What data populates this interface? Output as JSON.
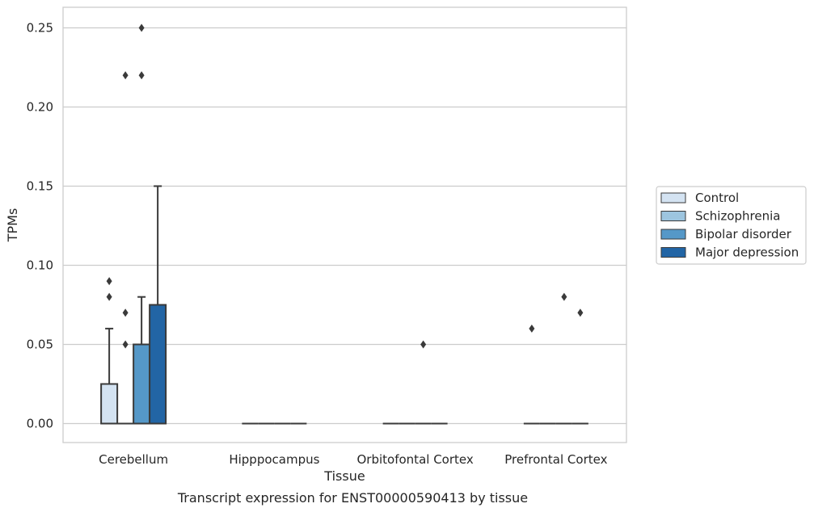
{
  "caption": "Transcript expression for ENST00000590413 by tissue",
  "colors": {
    "Control": "#d4e3f2",
    "Schizophrenia": "#9dc5df",
    "Bipolar disorder": "#5598c8",
    "Major depression": "#2265a5",
    "grid": "#cccccc",
    "frame": "#cccccc",
    "stroke": "#3a3a3a"
  },
  "chart_data": {
    "type": "box",
    "xlabel": "Tissue",
    "ylabel": "TPMs",
    "ylim": [
      -0.012,
      0.263
    ],
    "yticks": [
      0.0,
      0.05,
      0.1,
      0.15,
      0.2,
      0.25
    ],
    "ytick_labels": [
      "0.00",
      "0.05",
      "0.10",
      "0.15",
      "0.20",
      "0.25"
    ],
    "grid": "horizontal",
    "legend_position": "right",
    "categories": [
      "Cerebellum",
      "Hipppocampus",
      "Orbitofontal Cortex",
      "Prefrontal Cortex"
    ],
    "series": [
      {
        "name": "Control",
        "boxes": [
          {
            "q1": 0.0,
            "median": 0.0,
            "q3": 0.025,
            "whislo": 0.0,
            "whishi": 0.06,
            "fliers": [
              0.09,
              0.08
            ]
          },
          {
            "q1": 0.0,
            "median": 0.0,
            "q3": 0.0,
            "whislo": 0.0,
            "whishi": 0.0,
            "fliers": []
          },
          {
            "q1": 0.0,
            "median": 0.0,
            "q3": 0.0,
            "whislo": 0.0,
            "whishi": 0.0,
            "fliers": []
          },
          {
            "q1": 0.0,
            "median": 0.0,
            "q3": 0.0,
            "whislo": 0.0,
            "whishi": 0.0,
            "fliers": [
              0.06
            ]
          }
        ]
      },
      {
        "name": "Schizophrenia",
        "boxes": [
          {
            "q1": 0.0,
            "median": 0.0,
            "q3": 0.0,
            "whislo": 0.0,
            "whishi": 0.0,
            "fliers": [
              0.22,
              0.07,
              0.05
            ]
          },
          {
            "q1": 0.0,
            "median": 0.0,
            "q3": 0.0,
            "whislo": 0.0,
            "whishi": 0.0,
            "fliers": []
          },
          {
            "q1": 0.0,
            "median": 0.0,
            "q3": 0.0,
            "whislo": 0.0,
            "whishi": 0.0,
            "fliers": []
          },
          {
            "q1": 0.0,
            "median": 0.0,
            "q3": 0.0,
            "whislo": 0.0,
            "whishi": 0.0,
            "fliers": []
          }
        ]
      },
      {
        "name": "Bipolar disorder",
        "boxes": [
          {
            "q1": 0.0,
            "median": 0.0,
            "q3": 0.05,
            "whislo": 0.0,
            "whishi": 0.08,
            "fliers": [
              0.25,
              0.22
            ]
          },
          {
            "q1": 0.0,
            "median": 0.0,
            "q3": 0.0,
            "whislo": 0.0,
            "whishi": 0.0,
            "fliers": []
          },
          {
            "q1": 0.0,
            "median": 0.0,
            "q3": 0.0,
            "whislo": 0.0,
            "whishi": 0.0,
            "fliers": [
              0.05
            ]
          },
          {
            "q1": 0.0,
            "median": 0.0,
            "q3": 0.0,
            "whislo": 0.0,
            "whishi": 0.0,
            "fliers": [
              0.08
            ]
          }
        ]
      },
      {
        "name": "Major depression",
        "boxes": [
          {
            "q1": 0.0,
            "median": 0.0,
            "q3": 0.075,
            "whislo": 0.0,
            "whishi": 0.15,
            "fliers": []
          },
          {
            "q1": 0.0,
            "median": 0.0,
            "q3": 0.0,
            "whislo": 0.0,
            "whishi": 0.0,
            "fliers": []
          },
          {
            "q1": 0.0,
            "median": 0.0,
            "q3": 0.0,
            "whislo": 0.0,
            "whishi": 0.0,
            "fliers": []
          },
          {
            "q1": 0.0,
            "median": 0.0,
            "q3": 0.0,
            "whislo": 0.0,
            "whishi": 0.0,
            "fliers": [
              0.07
            ]
          }
        ]
      }
    ]
  }
}
